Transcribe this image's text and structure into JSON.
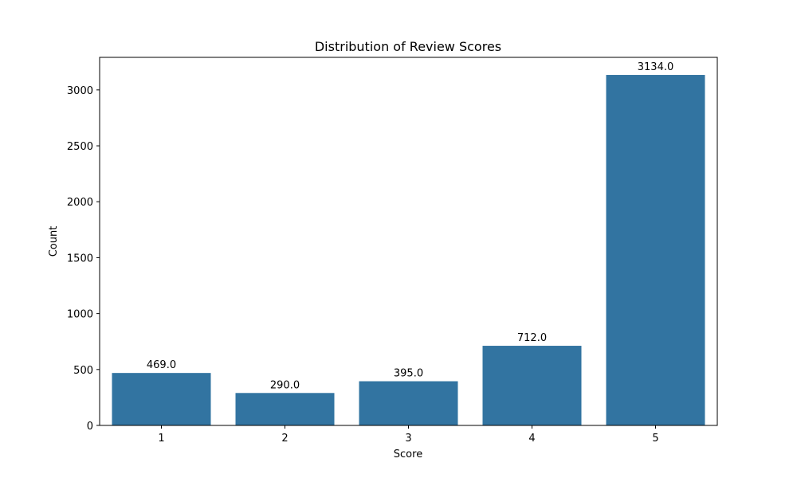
{
  "chart_data": {
    "type": "bar",
    "title": "Distribution of Review Scores",
    "xlabel": "Score",
    "ylabel": "Count",
    "categories": [
      "1",
      "2",
      "3",
      "4",
      "5"
    ],
    "values": [
      469,
      290,
      395,
      712,
      3134
    ],
    "data_labels": [
      "469.0",
      "290.0",
      "395.0",
      "712.0",
      "3134.0"
    ],
    "ylim": [
      0,
      3291
    ],
    "yticks": [
      0,
      500,
      1000,
      1500,
      2000,
      2500,
      3000
    ],
    "ytick_labels": [
      "0",
      "500",
      "1000",
      "1500",
      "2000",
      "2500",
      "3000"
    ],
    "grid": false,
    "bar_color": "#3274a1"
  }
}
